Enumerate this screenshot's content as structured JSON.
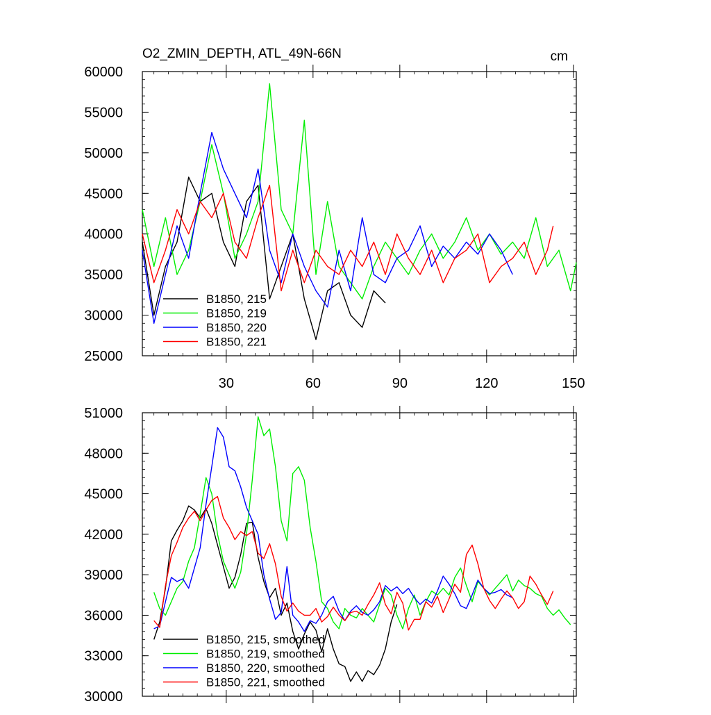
{
  "chart_data": [
    {
      "type": "line",
      "title": "O2_ZMIN_DEPTH, ATL_49N-66N",
      "units": "cm",
      "xlim": [
        1,
        151
      ],
      "ylim": [
        25000,
        60000
      ],
      "x_ticks": [
        30,
        60,
        90,
        120,
        150
      ],
      "x_tick_labels": [
        "30",
        "60",
        "90",
        "120",
        "150"
      ],
      "y_ticks": [
        25000,
        30000,
        35000,
        40000,
        45000,
        50000,
        55000,
        60000
      ],
      "y_tick_labels": [
        "25000",
        "30000",
        "35000",
        "40000",
        "45000",
        "50000",
        "55000",
        "60000"
      ],
      "legend_position": "lower-left",
      "series": [
        {
          "name": "B1850, 215",
          "color": "#000000",
          "x": [
            1,
            5,
            9,
            13,
            17,
            21,
            25,
            29,
            33,
            37,
            41,
            45,
            49,
            53,
            57,
            61,
            65,
            69,
            73,
            77,
            81,
            85
          ],
          "values": [
            39000,
            30000,
            36000,
            39000,
            47000,
            44000,
            45000,
            39000,
            36000,
            44000,
            46000,
            32000,
            36000,
            40000,
            32000,
            27000,
            33000,
            34000,
            30000,
            28500,
            33000,
            31500
          ]
        },
        {
          "name": "B1850, 219",
          "color": "#00ee00",
          "x": [
            1,
            5,
            9,
            13,
            17,
            21,
            25,
            29,
            33,
            37,
            41,
            45,
            49,
            53,
            57,
            61,
            65,
            69,
            73,
            77,
            81,
            85,
            89,
            93,
            97,
            101,
            105,
            109,
            113,
            117,
            121,
            125,
            129,
            133,
            137,
            141,
            145,
            149,
            151
          ],
          "values": [
            43000,
            36000,
            42000,
            35000,
            38000,
            44000,
            51000,
            45000,
            37000,
            40000,
            44000,
            58500,
            43000,
            40000,
            54000,
            35000,
            44000,
            36000,
            34000,
            32000,
            36000,
            39000,
            37000,
            35000,
            38000,
            40000,
            37000,
            39000,
            42000,
            38000,
            40000,
            37500,
            39000,
            37000,
            42000,
            36000,
            38000,
            33000,
            36500
          ]
        },
        {
          "name": "B1850, 220",
          "color": "#0000ff",
          "x": [
            1,
            5,
            9,
            13,
            17,
            21,
            25,
            29,
            33,
            37,
            41,
            45,
            49,
            53,
            57,
            61,
            65,
            69,
            73,
            77,
            81,
            85,
            89,
            93,
            97,
            101,
            105,
            109,
            113,
            117,
            121,
            125,
            129
          ],
          "values": [
            38000,
            29000,
            35000,
            41000,
            37000,
            45000,
            52500,
            48000,
            45000,
            42000,
            48000,
            38000,
            34000,
            40000,
            36000,
            33000,
            31000,
            38000,
            33000,
            42000,
            35000,
            34000,
            37000,
            38000,
            41000,
            36000,
            38500,
            37000,
            39000,
            37500,
            40000,
            38000,
            35000
          ]
        },
        {
          "name": "B1850, 221",
          "color": "#ff0000",
          "x": [
            1,
            5,
            9,
            13,
            17,
            21,
            25,
            29,
            33,
            37,
            41,
            45,
            49,
            53,
            57,
            61,
            65,
            69,
            73,
            77,
            81,
            85,
            89,
            93,
            97,
            101,
            105,
            109,
            113,
            117,
            121,
            125,
            129,
            133,
            137,
            141,
            143
          ],
          "values": [
            40000,
            34000,
            38000,
            43000,
            40000,
            44000,
            42000,
            45000,
            39000,
            37000,
            42000,
            46000,
            33000,
            38000,
            34000,
            38000,
            36000,
            35000,
            38000,
            36000,
            39000,
            35000,
            40000,
            37000,
            35000,
            38000,
            34000,
            37000,
            38000,
            40000,
            34000,
            36000,
            37000,
            39000,
            35000,
            38000,
            41000
          ]
        }
      ]
    },
    {
      "type": "line",
      "xlim": [
        1,
        151
      ],
      "ylim": [
        30000,
        51000
      ],
      "x_ticks": [
        30,
        60,
        90,
        120,
        150
      ],
      "y_ticks": [
        30000,
        33000,
        36000,
        39000,
        42000,
        45000,
        48000,
        51000
      ],
      "y_tick_labels": [
        "30000",
        "33000",
        "36000",
        "39000",
        "42000",
        "45000",
        "48000",
        "51000"
      ],
      "legend_position": "lower-left",
      "series": [
        {
          "name": "B1850, 215, smoothed",
          "color": "#000000",
          "x": [
            5,
            7,
            9,
            11,
            13,
            15,
            17,
            19,
            21,
            23,
            25,
            27,
            29,
            31,
            33,
            35,
            37,
            39,
            41,
            43,
            45,
            47,
            49,
            51,
            53,
            55,
            57,
            59,
            61,
            63,
            65,
            67,
            69,
            71,
            73,
            75,
            77,
            79,
            81,
            83,
            85,
            87,
            89
          ],
          "values": [
            34200,
            35500,
            38000,
            41500,
            42300,
            43000,
            44100,
            43800,
            43200,
            43900,
            42800,
            41200,
            39600,
            38000,
            38800,
            40500,
            42800,
            42900,
            40300,
            38500,
            37300,
            38000,
            36000,
            36900,
            34800,
            33500,
            34600,
            35500,
            34900,
            33300,
            35000,
            33500,
            32400,
            32200,
            31100,
            31800,
            31100,
            31900,
            31600,
            32300,
            33500,
            35500,
            36800
          ]
        },
        {
          "name": "B1850, 219, smoothed",
          "color": "#00ee00",
          "x": [
            5,
            7,
            9,
            11,
            13,
            15,
            17,
            19,
            21,
            23,
            25,
            27,
            29,
            31,
            33,
            35,
            37,
            39,
            41,
            43,
            45,
            47,
            49,
            51,
            53,
            55,
            57,
            59,
            61,
            63,
            65,
            67,
            69,
            71,
            73,
            75,
            77,
            79,
            81,
            83,
            85,
            87,
            89,
            91,
            93,
            95,
            97,
            99,
            101,
            103,
            105,
            107,
            109,
            111,
            113,
            115,
            117,
            119,
            121,
            123,
            125,
            127,
            129,
            131,
            133,
            135,
            137,
            139,
            141,
            143,
            145,
            147,
            149
          ],
          "values": [
            37700,
            36500,
            36000,
            37000,
            38000,
            38500,
            40000,
            41000,
            43500,
            46200,
            45000,
            42000,
            40000,
            39000,
            38000,
            39200,
            42000,
            46000,
            50700,
            49300,
            49800,
            47000,
            43000,
            41500,
            46500,
            47000,
            46000,
            42500,
            40000,
            37000,
            36500,
            35500,
            35000,
            36500,
            36000,
            35800,
            36500,
            36000,
            35500,
            36800,
            38000,
            37500,
            36000,
            35000,
            36500,
            37500,
            36000,
            37000,
            37800,
            37500,
            38000,
            37500,
            38800,
            39500,
            38200,
            37000,
            38500,
            38000,
            37500,
            38000,
            38500,
            39000,
            37800,
            38600,
            38200,
            38000,
            37600,
            37400,
            36500,
            36000,
            36400,
            35800,
            35300
          ]
        },
        {
          "name": "B1850, 220, smoothed",
          "color": "#0000ff",
          "x": [
            5,
            7,
            9,
            11,
            13,
            15,
            17,
            19,
            21,
            23,
            25,
            27,
            29,
            31,
            33,
            35,
            37,
            39,
            41,
            43,
            45,
            47,
            49,
            51,
            53,
            55,
            57,
            59,
            61,
            63,
            65,
            67,
            69,
            71,
            73,
            75,
            77,
            79,
            81,
            83,
            85,
            87,
            89,
            91,
            93,
            95,
            97,
            99,
            101,
            103,
            105,
            107,
            109,
            111,
            113,
            115,
            117,
            119,
            121,
            123,
            125,
            127,
            129
          ],
          "values": [
            35000,
            35200,
            37000,
            38800,
            38500,
            38700,
            38000,
            39500,
            41000,
            44200,
            47000,
            49900,
            49200,
            47000,
            46700,
            45500,
            44000,
            43000,
            42000,
            39000,
            37200,
            35700,
            36200,
            39600,
            36000,
            35500,
            34800,
            35600,
            35400,
            36000,
            37000,
            37400,
            36300,
            35600,
            36300,
            36700,
            36200,
            36000,
            36400,
            37000,
            38200,
            37800,
            38100,
            37600,
            38000,
            37300,
            36800,
            37200,
            36900,
            37800,
            38900,
            38300,
            37600,
            36700,
            36500,
            37500,
            38600,
            38000,
            37600,
            37700,
            37900,
            37500,
            37300
          ]
        },
        {
          "name": "B1850, 221, smoothed",
          "color": "#ff0000",
          "x": [
            5,
            7,
            9,
            11,
            13,
            15,
            17,
            19,
            21,
            23,
            25,
            27,
            29,
            31,
            33,
            35,
            37,
            39,
            41,
            43,
            45,
            47,
            49,
            51,
            53,
            55,
            57,
            59,
            61,
            63,
            65,
            67,
            69,
            71,
            73,
            75,
            77,
            79,
            81,
            83,
            85,
            87,
            89,
            91,
            93,
            95,
            97,
            99,
            101,
            103,
            105,
            107,
            109,
            111,
            113,
            115,
            117,
            119,
            121,
            123,
            125,
            127,
            129,
            131,
            133,
            135,
            137,
            139,
            141,
            143
          ],
          "values": [
            35600,
            35100,
            38200,
            40400,
            41400,
            42500,
            43200,
            43700,
            43000,
            43800,
            44500,
            44800,
            43200,
            42500,
            41600,
            42200,
            41900,
            42200,
            40600,
            40200,
            41300,
            39800,
            37400,
            36300,
            36900,
            36300,
            36000,
            36000,
            36500,
            35500,
            35900,
            36600,
            36000,
            35600,
            36200,
            36300,
            36000,
            36800,
            37500,
            38400,
            36800,
            36100,
            37700,
            36900,
            34900,
            35700,
            35700,
            37000,
            36600,
            37400,
            36200,
            37200,
            38300,
            37700,
            40500,
            41200,
            39800,
            38000,
            37100,
            36500,
            37200,
            37800,
            37300,
            36500,
            37000,
            38900,
            38300,
            37500,
            36800,
            37800
          ]
        }
      ]
    }
  ]
}
